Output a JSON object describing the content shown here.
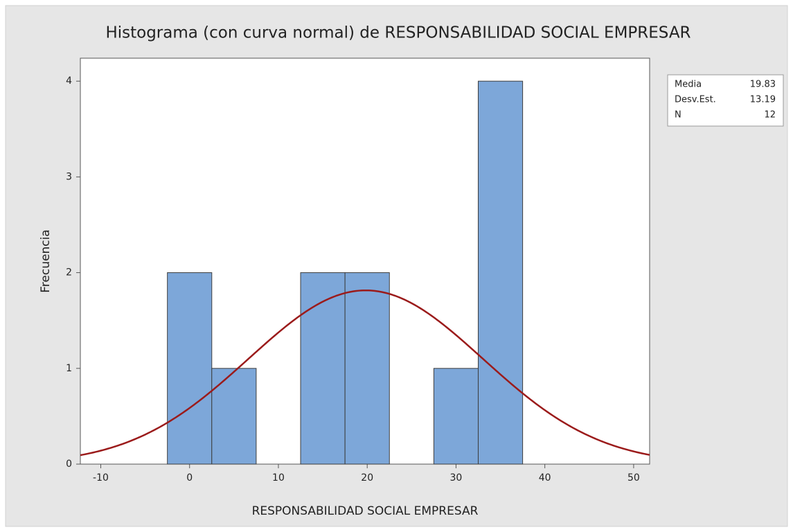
{
  "chart_data": {
    "type": "histogram",
    "title": "Histograma (con curva normal) de RESPONSABILIDAD SOCIAL EMPRESAR",
    "x_label": "RESPONSABILIDAD SOCIAL EMPRESAR",
    "y_label": "Frecuencia",
    "bins": [
      -2.5,
      2.5,
      7.5,
      12.5,
      17.5,
      22.5,
      27.5,
      32.5,
      37.5
    ],
    "counts": [
      2,
      1,
      0,
      2,
      2,
      0,
      1,
      4
    ],
    "color": "#7da7d9",
    "curve_color": "#9b1b1b",
    "stats": [
      {
        "label": "Media",
        "value": 19.83
      },
      {
        "label": "Desv.Est.",
        "value": 13.19
      },
      {
        "label": "N",
        "value": 12
      }
    ],
    "xlim": [
      -12.3,
      51.8
    ],
    "xticks": [
      -10,
      0,
      10,
      20,
      30,
      40,
      50
    ],
    "ylim": [
      0,
      4.24
    ],
    "yticks": [
      0,
      1,
      2,
      3,
      4
    ],
    "grid": false
  }
}
